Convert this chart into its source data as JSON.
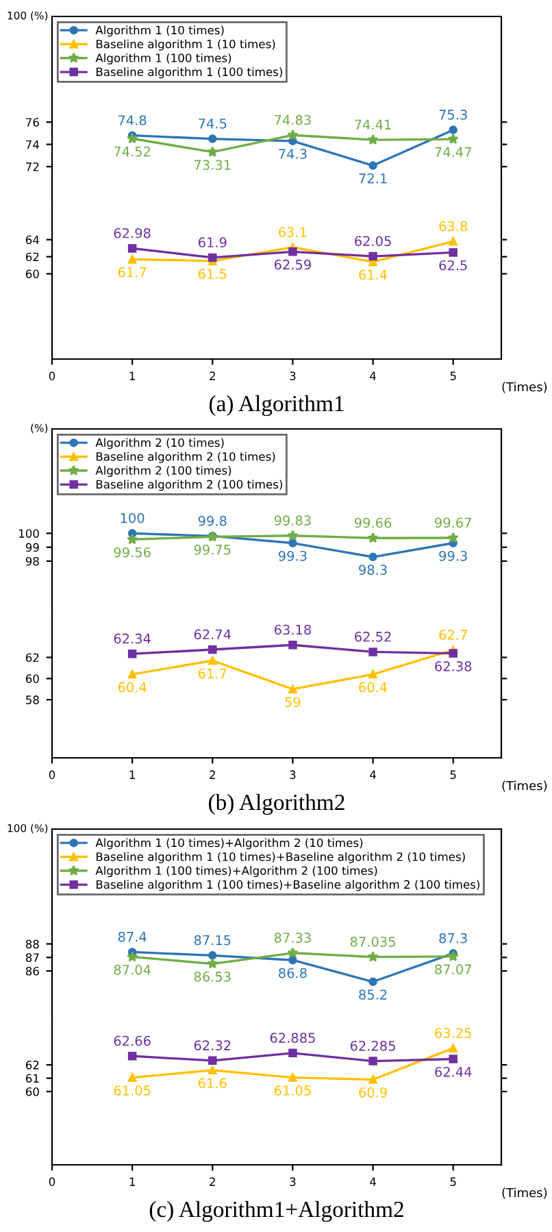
{
  "chart_data": [
    {
      "type": "line",
      "ylabel": "100 (%)",
      "x": [
        1,
        2,
        3,
        4,
        5
      ],
      "xlim": [
        0,
        5.6
      ],
      "ylim": [
        68.5,
        85.5
      ],
      "yticks": [
        72,
        74,
        76
      ],
      "tick_labels": "y",
      "legend": "top left",
      "data_labels": true,
      "series": [
        {
          "name": "Algorithm 1 (10 times)",
          "color": "#2e75b6",
          "marker": "circle",
          "values": [
            74.8,
            74.5,
            74.3,
            72.1,
            75.3
          ]
        },
        {
          "name": "Algorithm 1 (100 times)",
          "color": "#70ad47",
          "marker": "star",
          "values": [
            74.52,
            73.31,
            74.83,
            74.41,
            74.47
          ]
        }
      ]
    },
    {
      "type": "line",
      "title": "(a) Algorithm1",
      "xlabel": "(Times)",
      "legend": "top left",
      "x": [
        1,
        2,
        3,
        4,
        5
      ],
      "xlim": [
        0,
        5.6
      ],
      "xticks": [
        0,
        1,
        2,
        3,
        4,
        5
      ],
      "ylim": [
        50,
        68
      ],
      "yticks": [
        60,
        62,
        64
      ],
      "data_labels": true,
      "series": [
        {
          "name": "Baseline algorithm 1 (10 times)",
          "color": "#ffc000",
          "marker": "triangle",
          "values": [
            61.7,
            61.5,
            63.1,
            61.4,
            63.8
          ]
        },
        {
          "name": "Baseline algorithm 1 (100 times)",
          "color": "#7030a0",
          "marker": "square",
          "values": [
            62.98,
            61.9,
            62.59,
            62.05,
            62.5
          ]
        }
      ]
    },
    {
      "type": "line",
      "ylabel": "(%)",
      "x": [
        1,
        2,
        3,
        4,
        5
      ],
      "xlim": [
        0,
        5.6
      ],
      "ylim": [
        94.5,
        107.5
      ],
      "yticks": [
        98,
        99,
        100
      ],
      "tick_labels": "y",
      "legend": "top left",
      "data_labels": true,
      "series": [
        {
          "name": "Algorithm 2 (10 times)",
          "color": "#2e75b6",
          "marker": "circle",
          "values": [
            100,
            99.8,
            99.3,
            98.3,
            99.3
          ]
        },
        {
          "name": "Algorithm 2 (100 times)",
          "color": "#70ad47",
          "marker": "star",
          "values": [
            99.56,
            99.75,
            99.83,
            99.66,
            99.67
          ]
        }
      ]
    },
    {
      "type": "line",
      "title": "(b) Algorithm2",
      "xlabel": "(Times)",
      "legend": "top left",
      "x": [
        1,
        2,
        3,
        4,
        5
      ],
      "xlim": [
        0,
        5.6
      ],
      "xticks": [
        0,
        1,
        2,
        3,
        4,
        5
      ],
      "ylim": [
        52.5,
        66.5
      ],
      "yticks": [
        58,
        60,
        62
      ],
      "data_labels": true,
      "series": [
        {
          "name": "Baseline algorithm 2 (10 times)",
          "color": "#ffc000",
          "marker": "triangle",
          "values": [
            60.4,
            61.7,
            59,
            60.4,
            62.7
          ]
        },
        {
          "name": "Baseline algorithm 2 (100 times)",
          "color": "#7030a0",
          "marker": "square",
          "values": [
            62.34,
            62.74,
            63.18,
            62.52,
            62.38
          ]
        }
      ]
    },
    {
      "type": "line",
      "ylabel": "100 (%)",
      "x": [
        1,
        2,
        3,
        4,
        5
      ],
      "xlim": [
        0,
        5.6
      ],
      "ylim": [
        82.5,
        96.5
      ],
      "yticks": [
        86,
        87,
        88
      ],
      "tick_labels": "y",
      "legend": "top left",
      "data_labels": true,
      "series": [
        {
          "name": "Algorithm 1 (10 times)+Algorithm 2 (10 times)",
          "color": "#2e75b6",
          "marker": "circle",
          "values": [
            87.4,
            87.15,
            86.8,
            85.2,
            87.3
          ]
        },
        {
          "name": "Algorithm 1 (100 times)+Algorithm 2 (100 times)",
          "color": "#70ad47",
          "marker": "star",
          "values": [
            87.04,
            86.53,
            87.33,
            87.035,
            87.07
          ]
        }
      ]
    },
    {
      "type": "line",
      "title": "(c) Algorithm1+Algorithm2",
      "xlabel": "(Times)",
      "legend": "top left",
      "x": [
        1,
        2,
        3,
        4,
        5
      ],
      "xlim": [
        0,
        5.6
      ],
      "xticks": [
        0,
        1,
        2,
        3,
        4,
        5
      ],
      "ylim": [
        54.5,
        65.5
      ],
      "yticks": [
        60,
        61,
        62
      ],
      "data_labels": true,
      "series": [
        {
          "name": "Baseline algorithm 1 (10 times)+Baseline algorithm 2 (10 times)",
          "color": "#ffc000",
          "marker": "triangle",
          "values": [
            61.05,
            61.6,
            61.05,
            60.9,
            63.25
          ]
        },
        {
          "name": "Baseline algorithm 1 (100 times)+Baseline algorithm 2 (100 times)",
          "color": "#7030a0",
          "marker": "square",
          "values": [
            62.66,
            62.32,
            62.885,
            62.285,
            62.44
          ]
        }
      ]
    }
  ]
}
